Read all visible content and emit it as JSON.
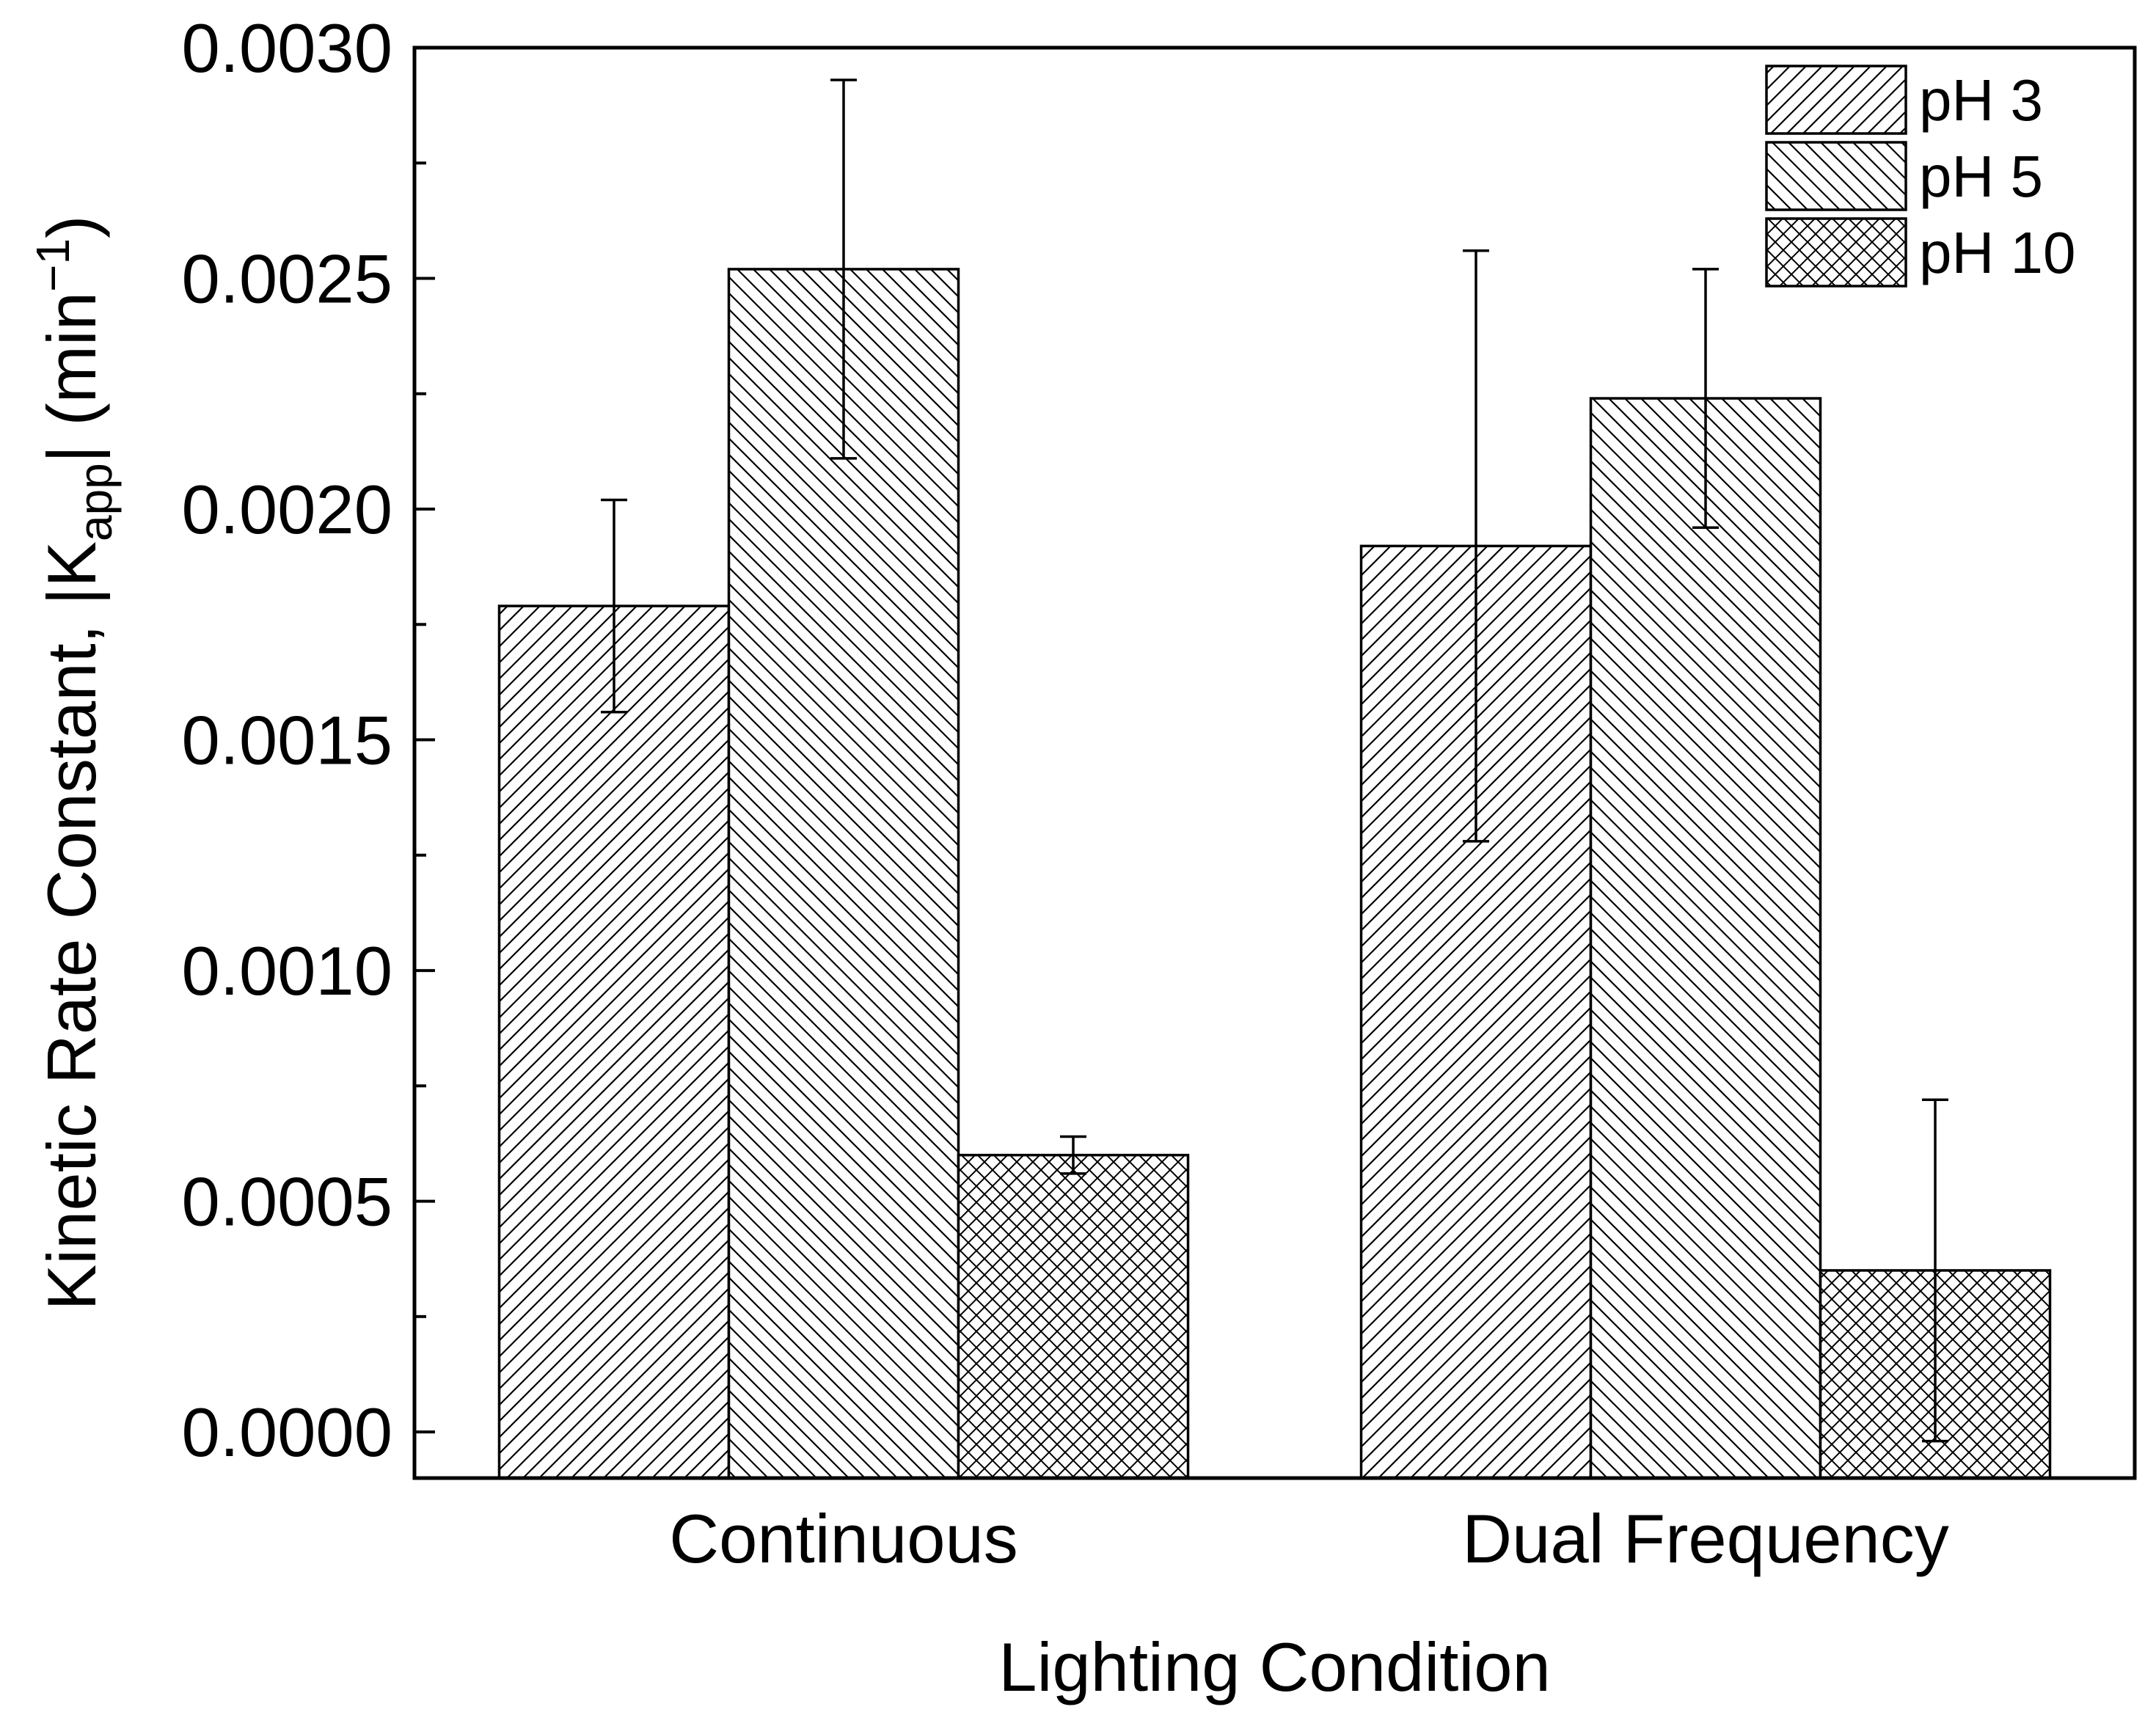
{
  "chart_data": {
    "type": "bar",
    "title": "",
    "xlabel": "Lighting Condition",
    "ylabel": {
      "main": "Kinetic Rate Constant, |K",
      "subscript": "app",
      "close": "| (min",
      "superscript": "−1",
      "end": ")"
    },
    "categories": [
      "Continuous",
      "Dual Frequency"
    ],
    "series": [
      {
        "name": "pH 3",
        "pattern": "diag-up",
        "values": [
          0.00179,
          0.00192
        ],
        "errors": [
          0.00023,
          0.00064
        ]
      },
      {
        "name": "pH 5",
        "pattern": "diag-down",
        "values": [
          0.00252,
          0.00224
        ],
        "errors": [
          0.00041,
          0.00028
        ]
      },
      {
        "name": "pH 10",
        "pattern": "crosshatch",
        "values": [
          0.0006,
          0.00035
        ],
        "errors": [
          4e-05,
          0.00037
        ]
      }
    ],
    "ylim": [
      -0.0001,
      0.003
    ],
    "yticks": [
      0.0,
      0.0005,
      0.001,
      0.0015,
      0.002,
      0.0025,
      0.003
    ],
    "ytick_labels": [
      "0.0000",
      "0.0005",
      "0.0010",
      "0.0015",
      "0.0020",
      "0.0025",
      "0.0030"
    ],
    "legend_position": "top-right",
    "grid": false,
    "colors": {
      "bar_fill": "#ffffff",
      "ink": "#000000"
    }
  }
}
